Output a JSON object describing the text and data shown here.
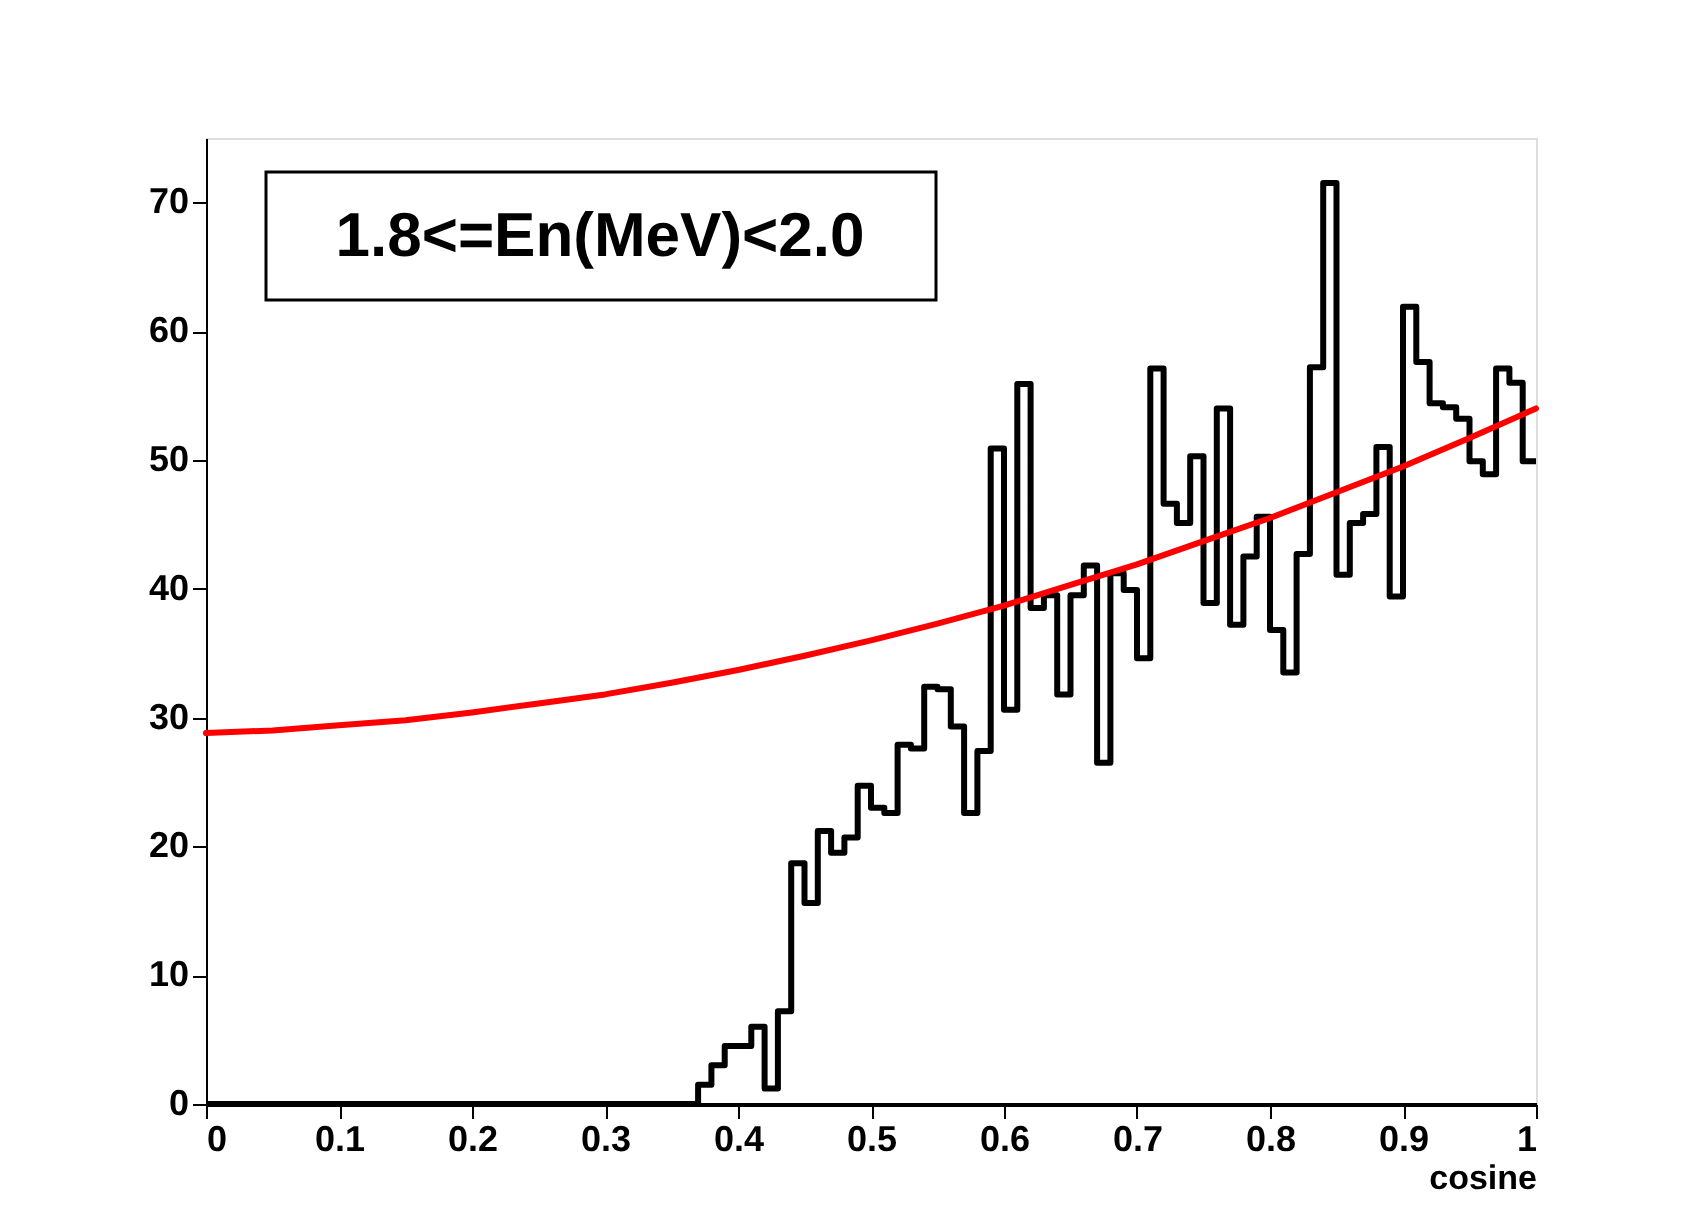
{
  "chart_data": {
    "type": "histogram",
    "title": "1.8<=En(MeV)<2.0",
    "xlabel": "cosine",
    "xlim": [
      0,
      1
    ],
    "ylim": [
      0,
      75
    ],
    "xticks": [
      0,
      0.1,
      0.2,
      0.3,
      0.4,
      0.5,
      0.6,
      0.7,
      0.8,
      0.9,
      1
    ],
    "yticks": [
      0,
      10,
      20,
      30,
      40,
      50,
      60,
      70
    ],
    "grid": false,
    "series": [
      {
        "color": "#000000",
        "bins": [
          0,
          0.01,
          0.02,
          0.03,
          0.04,
          0.05,
          0.06,
          0.07,
          0.08,
          0.09,
          0.1,
          0.11,
          0.12,
          0.13,
          0.14,
          0.15,
          0.16,
          0.17,
          0.18,
          0.19,
          0.2,
          0.21,
          0.22,
          0.23,
          0.24,
          0.25,
          0.26,
          0.27,
          0.28,
          0.29,
          0.3,
          0.31,
          0.32,
          0.33,
          0.34,
          0.35,
          0.36,
          0.37,
          0.38,
          0.39,
          0.4,
          0.41,
          0.42,
          0.43,
          0.44,
          0.45,
          0.46,
          0.47,
          0.48,
          0.49,
          0.5,
          0.51,
          0.52,
          0.53,
          0.54,
          0.55,
          0.56,
          0.57,
          0.58,
          0.59,
          0.6,
          0.61,
          0.62,
          0.63,
          0.64,
          0.65,
          0.66,
          0.67,
          0.68,
          0.69,
          0.7,
          0.71,
          0.72,
          0.73,
          0.74,
          0.75,
          0.76,
          0.77,
          0.78,
          0.79,
          0.8,
          0.81,
          0.82,
          0.83,
          0.84,
          0.85,
          0.86,
          0.87,
          0.88,
          0.89,
          0.9,
          0.91,
          0.92,
          0.93,
          0.94,
          0.95,
          0.96,
          0.97,
          0.98,
          0.99,
          1
        ],
        "values": [
          0,
          0,
          0,
          0,
          0,
          0,
          0,
          0,
          0,
          0,
          0,
          0,
          0,
          0,
          0,
          0,
          0,
          0,
          0,
          0,
          0,
          0,
          0,
          0,
          0,
          0,
          0,
          0,
          0,
          0,
          0,
          0,
          0,
          0,
          0,
          0,
          0,
          1.5,
          3,
          4.5,
          4.5,
          6,
          1.2,
          7.2,
          18.7,
          15.6,
          21.2,
          19.5,
          20.7,
          24.7,
          23.0,
          22.6,
          27.9,
          27.6,
          32.4,
          32.2,
          29.3,
          22.6,
          27.4,
          50.9,
          30.6,
          55.9,
          38.5,
          39.5,
          31.8,
          39.5,
          41.8,
          26.5,
          41.2,
          39.9,
          34.6,
          57.1,
          46.6,
          45.1,
          50.3,
          38.9,
          54.0,
          37.2,
          42.5,
          45.6,
          36.8,
          33.5,
          42.7,
          57.2,
          71.5,
          41.1,
          45.1,
          45.8,
          51.0,
          39.4,
          61.9,
          57.6,
          54.4,
          54.1,
          53.2,
          49.9,
          48.9,
          57.1,
          56.0,
          49.9
        ]
      },
      {
        "type": "line",
        "color": "#ff0000",
        "x": [
          0,
          0.05,
          0.1,
          0.15,
          0.2,
          0.25,
          0.3,
          0.35,
          0.4,
          0.45,
          0.5,
          0.55,
          0.6,
          0.65,
          0.7,
          0.75,
          0.8,
          0.85,
          0.9,
          0.95,
          1
        ],
        "values": [
          28.8,
          29.0,
          29.4,
          29.8,
          30.4,
          31.1,
          31.8,
          32.7,
          33.7,
          34.8,
          36.0,
          37.3,
          38.7,
          40.3,
          41.9,
          43.7,
          45.5,
          47.5,
          49.5,
          51.7,
          54.0
        ]
      }
    ]
  }
}
